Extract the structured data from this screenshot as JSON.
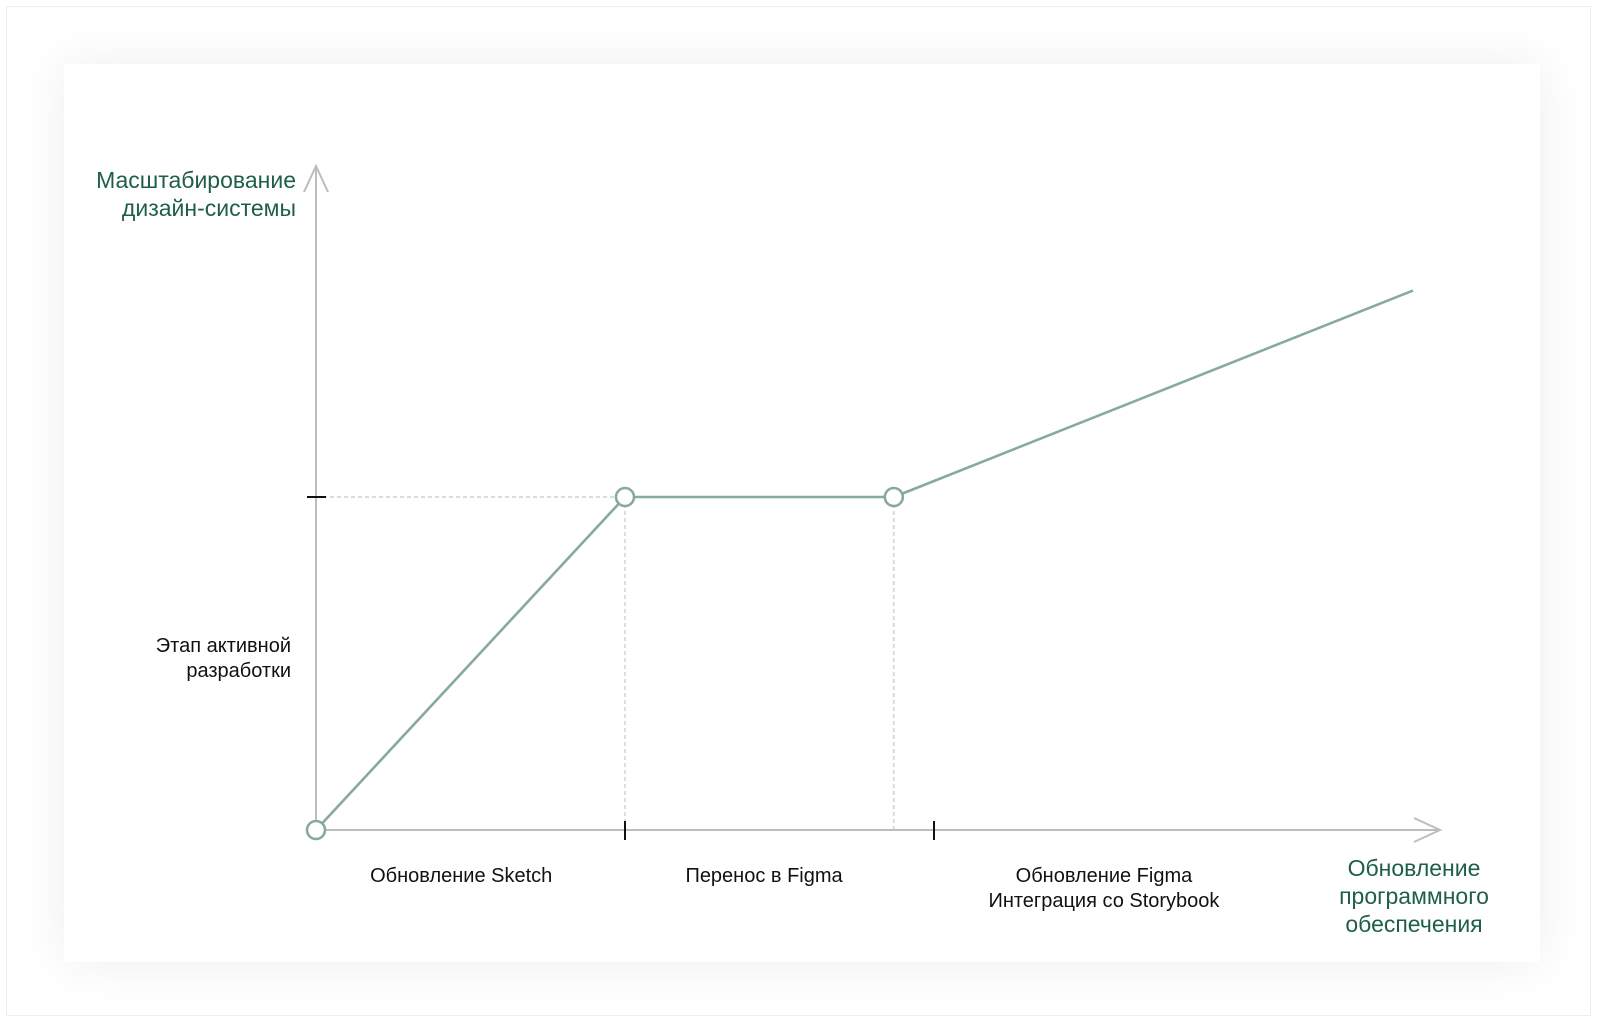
{
  "colors": {
    "line": "#87a99e",
    "axis": "#bdbdbd",
    "guide": "#c8c8c8",
    "tick": "#111111",
    "accent_text": "#1f5e4c",
    "text": "#111111"
  },
  "chart_data": {
    "type": "line",
    "title": "",
    "y_axis_label": [
      "Масштабирование",
      "дизайн-системы"
    ],
    "x_axis_label": [
      "Обновление",
      "программного",
      "обеспечения"
    ],
    "y_tick_label": [
      "Этап активной",
      "разработки"
    ],
    "x_segments": [
      {
        "name": "sketch",
        "lines": [
          "Обновление Sketch"
        ]
      },
      {
        "name": "figma-transfer",
        "lines": [
          "Перенос в Figma"
        ]
      },
      {
        "name": "figma-storybook",
        "lines": [
          "Обновление Figma",
          "Интеграция со Storybook"
        ]
      }
    ],
    "x_ticks": [
      1,
      2
    ],
    "y_ticks": [
      1
    ],
    "xlim": [
      0,
      3.7
    ],
    "ylim": [
      0,
      2
    ],
    "series": [
      {
        "points": [
          {
            "x": 0,
            "y": 0,
            "marker": true
          },
          {
            "x": 1,
            "y": 1,
            "marker": true
          },
          {
            "x": 1.87,
            "y": 1,
            "marker": true
          },
          {
            "x": 3.55,
            "y": 1.62,
            "marker": false
          }
        ]
      }
    ],
    "guides": [
      {
        "type": "horizontal",
        "y": 1,
        "from_x": 0,
        "to_x": 1
      },
      {
        "type": "vertical",
        "x": 1,
        "from_y": 0,
        "to_y": 1
      },
      {
        "type": "vertical",
        "x": 1.87,
        "from_y": 0,
        "to_y": 1
      }
    ],
    "grid": false,
    "legend": "none"
  }
}
